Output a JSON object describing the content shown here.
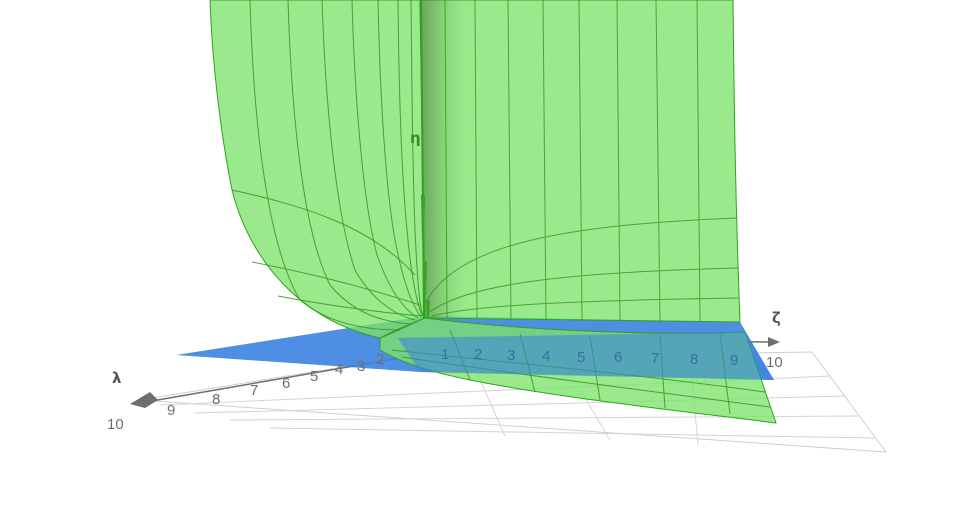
{
  "axes": {
    "zeta": {
      "label": "ζ",
      "ticks": [
        "1",
        "2",
        "3",
        "4",
        "5",
        "6",
        "7",
        "8",
        "9",
        "10"
      ]
    },
    "lambda": {
      "label": "λ",
      "ticks": [
        "2",
        "3",
        "4",
        "5",
        "6",
        "7",
        "8",
        "9",
        "10"
      ]
    },
    "eta": {
      "label": "η"
    }
  },
  "colors": {
    "surface_fill": "#7ee36b",
    "surface_edge": "#2fa31c",
    "plane_fill": "#3b82e0",
    "axis": "#6e6e6e",
    "grid": "#d4d4d4"
  }
}
